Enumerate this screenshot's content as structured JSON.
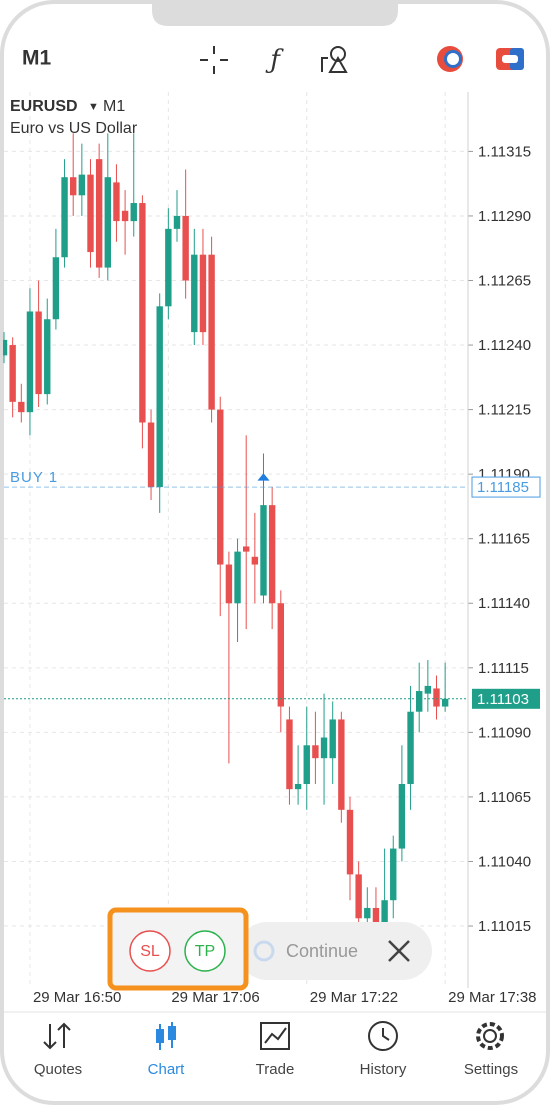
{
  "top_bar": {
    "timeframe": "M1"
  },
  "chart_data": {
    "type": "candlestick",
    "symbol": "EURUSD",
    "timeframe": "M1",
    "description": "Euro vs US Dollar",
    "open": [
      1.11236,
      1.1124,
      1.11218,
      1.11214,
      1.11253,
      1.11221,
      1.1125,
      1.11274,
      1.11305,
      1.11298,
      1.11306,
      1.11312,
      1.1127,
      1.11303,
      1.11292,
      1.11288,
      1.11295,
      1.1121,
      1.11185,
      1.11255,
      1.11285,
      1.1129,
      1.11245,
      1.11275,
      1.11275,
      1.11215,
      1.11155,
      1.1114,
      1.11162,
      1.11158,
      1.11143,
      1.11178,
      1.1114,
      1.11095,
      1.11068,
      1.1107,
      1.11085,
      1.1108,
      1.1108,
      1.11095,
      1.1106,
      1.11035,
      1.11018,
      1.11022,
      1.11015,
      1.11025,
      1.11045,
      1.1107,
      1.11098,
      1.11105,
      1.11107,
      1.111
    ],
    "high": [
      1.11245,
      1.11243,
      1.11225,
      1.11262,
      1.11265,
      1.11258,
      1.11285,
      1.11312,
      1.11322,
      1.11318,
      1.11312,
      1.11318,
      1.11322,
      1.1131,
      1.113,
      1.11322,
      1.11298,
      1.11215,
      1.1126,
      1.11293,
      1.113,
      1.11308,
      1.11285,
      1.11285,
      1.11282,
      1.1122,
      1.1116,
      1.11165,
      1.11205,
      1.11175,
      1.11198,
      1.11185,
      1.11145,
      1.111,
      1.11085,
      1.111,
      1.11098,
      1.11105,
      1.11102,
      1.11098,
      1.11065,
      1.1104,
      1.1103,
      1.1103,
      1.11045,
      1.1105,
      1.11085,
      1.11108,
      1.11117,
      1.11118,
      1.11112,
      1.11117
    ],
    "low": [
      1.11233,
      1.11212,
      1.1121,
      1.11205,
      1.11216,
      1.11217,
      1.11246,
      1.1127,
      1.1129,
      1.1129,
      1.1127,
      1.11266,
      1.11265,
      1.1128,
      1.11275,
      1.11282,
      1.112,
      1.1118,
      1.11175,
      1.1125,
      1.1128,
      1.11258,
      1.1124,
      1.1124,
      1.1121,
      1.11135,
      1.11078,
      1.11125,
      1.1113,
      1.1114,
      1.1114,
      1.1113,
      1.1109,
      1.11062,
      1.11062,
      1.1106,
      1.1107,
      1.11062,
      1.1107,
      1.11055,
      1.11025,
      1.11005,
      1.1101,
      1.11008,
      1.1101,
      1.11018,
      1.1104,
      1.1106,
      1.1109,
      1.11098,
      1.11095,
      1.11098
    ],
    "close": [
      1.11242,
      1.11218,
      1.11214,
      1.11253,
      1.11221,
      1.1125,
      1.11274,
      1.11305,
      1.11298,
      1.11306,
      1.11276,
      1.1127,
      1.11305,
      1.11288,
      1.11288,
      1.11295,
      1.1121,
      1.11185,
      1.11255,
      1.11285,
      1.1129,
      1.11265,
      1.11275,
      1.11245,
      1.11215,
      1.11155,
      1.1114,
      1.1116,
      1.1116,
      1.11155,
      1.11178,
      1.1114,
      1.111,
      1.11068,
      1.1107,
      1.11085,
      1.1108,
      1.11088,
      1.11095,
      1.1106,
      1.11035,
      1.11018,
      1.11022,
      1.11015,
      1.11025,
      1.11045,
      1.1107,
      1.11098,
      1.11106,
      1.11108,
      1.111,
      1.11103
    ],
    "up_color": "#1f9e89",
    "down_color": "#e8504f",
    "ylim": [
      1.10991,
      1.11338
    ],
    "yticks": [
      1.11015,
      {
        "value": 1.1104,
        "label": "1.11040"
      },
      1.11065,
      {
        "value": 1.1109,
        "label": "1.11090"
      },
      1.11115,
      {
        "value": 1.1114,
        "label": "1.11140"
      },
      1.11165,
      {
        "value": 1.1119,
        "label": "1.11190"
      },
      1.11215,
      {
        "value": 1.1124,
        "label": "1.11240"
      },
      1.11265,
      {
        "value": 1.1129,
        "label": "1.11290"
      },
      1.11315
    ],
    "xticks": [
      "29 Mar 16:50",
      "29 Mar 17:06",
      "29 Mar 17:22",
      "29 Mar 17:38"
    ],
    "grid": true,
    "trade_line": {
      "label": "BUY 1",
      "value": 1.11185,
      "color": "#4a9be0"
    },
    "price_line": {
      "value": 1.11103,
      "color": "#1f9e89"
    }
  },
  "quick_panel": {
    "sl": "SL",
    "tp": "TP",
    "continue": "Continue"
  },
  "nav": [
    "Quotes",
    "Chart",
    "Trade",
    "History",
    "Settings"
  ]
}
